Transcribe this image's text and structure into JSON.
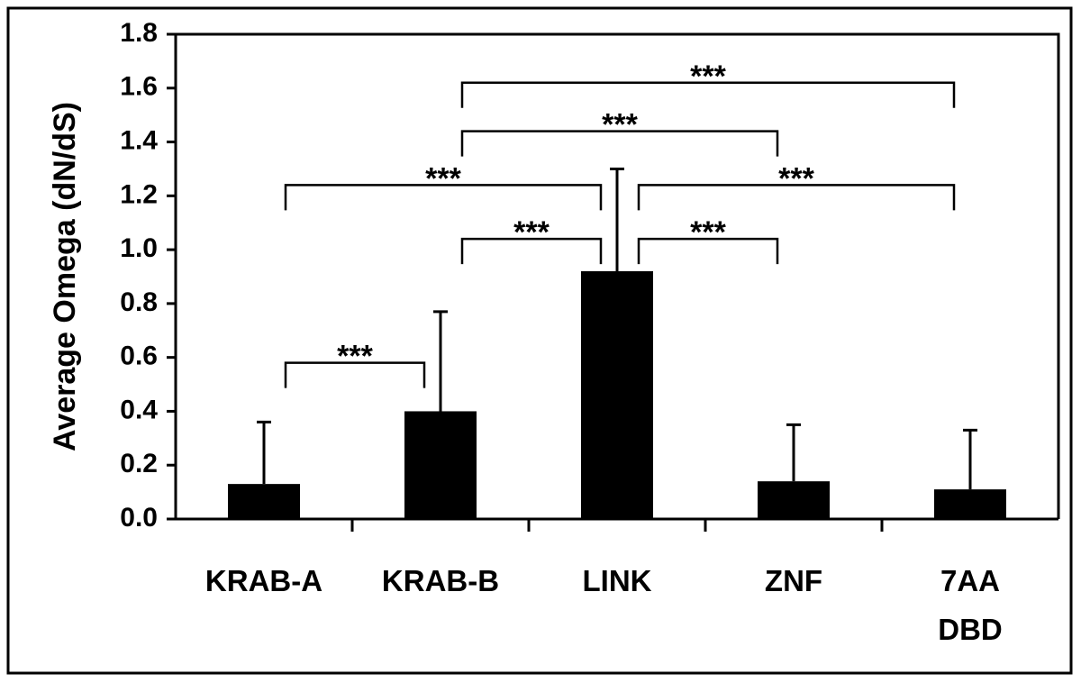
{
  "chart_data": {
    "type": "bar",
    "y_label": "Average Omega (dN/dS)",
    "categories": [
      "KRAB-A",
      "KRAB-B",
      "LINK",
      "ZNF",
      "7AA\nDBD"
    ],
    "values": [
      0.13,
      0.4,
      0.92,
      0.14,
      0.11
    ],
    "errors": [
      0.23,
      0.37,
      0.38,
      0.21,
      0.22
    ],
    "color": "#000000",
    "ylim": [
      0,
      1.8
    ],
    "yticks": [
      {
        "value": 0,
        "label": "0.0"
      },
      {
        "value": 0.2,
        "label": "0.2"
      },
      {
        "value": 0.4,
        "label": "0.4"
      },
      {
        "value": 0.6,
        "label": "0.6"
      },
      {
        "value": 0.8,
        "label": "0.8"
      },
      {
        "value": 1.0,
        "label": "1.0"
      },
      {
        "value": 1.2,
        "label": "1.2"
      },
      {
        "value": 1.4,
        "label": "1.4"
      },
      {
        "value": 1.6,
        "label": "1.6"
      },
      {
        "value": 1.8,
        "label": "1.8"
      }
    ],
    "grid": false,
    "annotations": [
      {
        "text": "***",
        "pair": [
          "KRAB-A",
          "KRAB-B"
        ]
      },
      {
        "text": "***",
        "pair": [
          "KRAB-B",
          "LINK"
        ]
      },
      {
        "text": "***",
        "pair": [
          "LINK",
          "ZNF"
        ]
      },
      {
        "text": "***",
        "pair": [
          "KRAB-A",
          "LINK"
        ]
      },
      {
        "text": "***",
        "pair": [
          "LINK",
          "7AA\nDBD"
        ]
      },
      {
        "text": "***",
        "pair": [
          "KRAB-B",
          "ZNF"
        ]
      },
      {
        "text": "***",
        "pair": [
          "KRAB-B",
          "7AA\nDBD"
        ]
      }
    ]
  }
}
